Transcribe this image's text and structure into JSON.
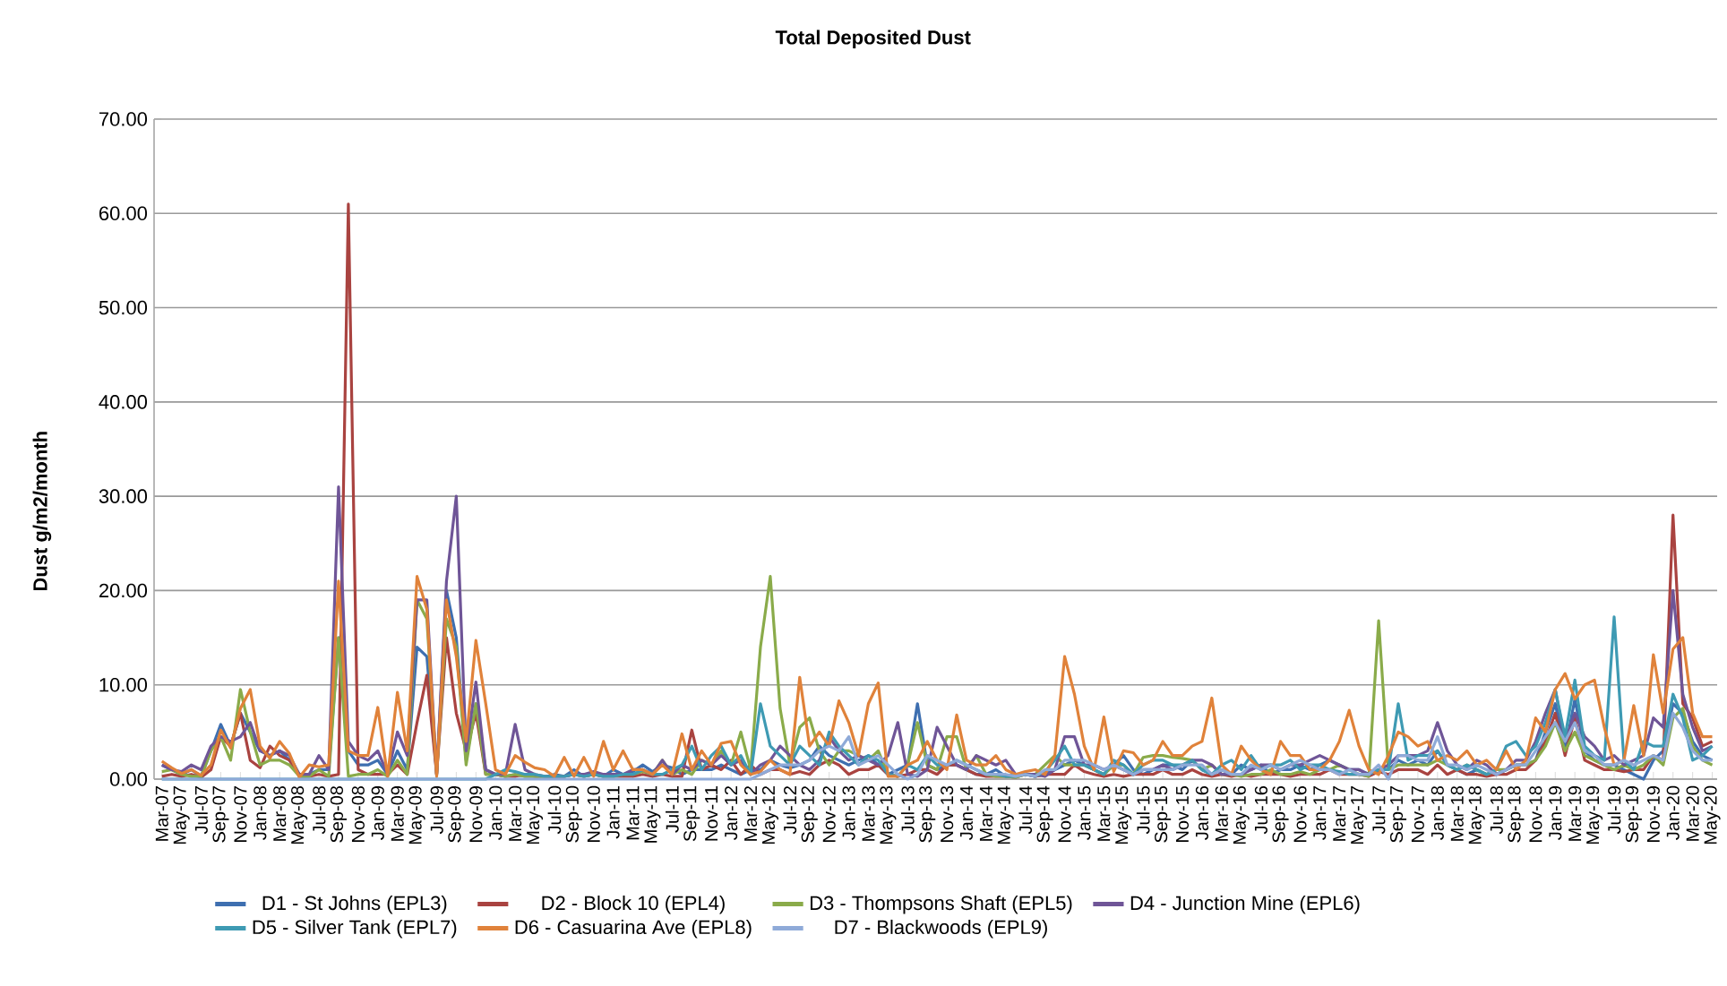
{
  "chart_data": {
    "type": "line",
    "title": "Total Deposited Dust",
    "ylabel": "Dust g/m2/month",
    "categories": [
      "Mar-07",
      null,
      "May-07",
      null,
      "Jul-07",
      null,
      "Sep-07",
      null,
      "Nov-07",
      null,
      "Jan-08",
      null,
      "Mar-08",
      null,
      "May-08",
      null,
      "Jul-08",
      null,
      "Sep-08",
      null,
      "Nov-08",
      null,
      "Jan-09",
      null,
      "Mar-09",
      null,
      "May-09",
      null,
      "Jul-09",
      null,
      "Sep-09",
      null,
      "Nov-09",
      null,
      "Jan-10",
      null,
      "Mar-10",
      null,
      "May-10",
      null,
      "Jul-10",
      null,
      "Sep-10",
      null,
      "Nov-10",
      null,
      "Jan-11",
      null,
      "Mar-11",
      null,
      "May-11",
      null,
      "Jul-11",
      null,
      "Sep-11",
      null,
      "Nov-11",
      null,
      "Jan-12",
      null,
      "Mar-12",
      null,
      "May-12",
      null,
      "Jul-12",
      null,
      "Sep-12",
      null,
      "Nov-12",
      null,
      "Jan-13",
      null,
      "Mar-13",
      null,
      "May-13",
      null,
      "Jul-13",
      null,
      "Sep-13",
      null,
      "Nov-13",
      null,
      "Jan-14",
      null,
      "Mar-14",
      null,
      "May-14",
      null,
      "Jul-14",
      null,
      "Sep-14",
      null,
      "Nov-14",
      null,
      "Jan-15",
      null,
      "Mar-15",
      null,
      "May-15",
      null,
      "Jul-15",
      null,
      "Sep-15",
      null,
      "Nov-15",
      null,
      "Jan-16",
      null,
      "Mar-16",
      null,
      "May-16",
      null,
      "Jul-16",
      null,
      "Sep-16",
      null,
      "Nov-16",
      null,
      "Jan-17",
      null,
      "Mar-17",
      null,
      "May-17",
      null,
      "Jul-17",
      null,
      "Sep-17",
      null,
      "Nov-17",
      null,
      "Jan-18",
      null,
      "Mar-18",
      null,
      "May-18",
      null,
      "Jul-18",
      null,
      "Sep-18",
      null,
      "Nov-18",
      null,
      "Jan-19",
      null,
      "Mar-19",
      null,
      "May-19",
      null,
      "Jul-19",
      null,
      "Sep-19",
      null,
      "Nov-19",
      null,
      "Jan-20",
      null,
      "Mar-20",
      null,
      "May-20"
    ],
    "ylim": [
      0,
      70
    ],
    "yticks": [
      {
        "value": 0,
        "label": "0.00"
      },
      {
        "value": 10,
        "label": "10.00"
      },
      {
        "value": 20,
        "label": "20.00"
      },
      {
        "value": 30,
        "label": "30.00"
      },
      {
        "value": 40,
        "label": "40.00"
      },
      {
        "value": 50,
        "label": "50.00"
      },
      {
        "value": 60,
        "label": "60.00"
      },
      {
        "value": 70,
        "label": "70.00"
      }
    ],
    "grid": "y",
    "legend": "bottom",
    "marker": "none",
    "line_style": "solid",
    "series": [
      {
        "name": "D1 - St Johns (EPL3)",
        "color": "#3e6fb0",
        "values": [
          1.5,
          1.0,
          0.5,
          1.0,
          0.3,
          3.0,
          5.8,
          3.5,
          7.0,
          5.0,
          3.0,
          2.5,
          3.0,
          2.0,
          0.5,
          0.5,
          1.0,
          1.0,
          15.0,
          3.0,
          1.5,
          1.5,
          2.0,
          0.5,
          3.0,
          1.0,
          14.0,
          13.0,
          0.5,
          20.0,
          15.0,
          2.0,
          8.0,
          1.0,
          0.5,
          0.3,
          0.5,
          0.3,
          0.3,
          0.2,
          0.5,
          0.3,
          1.0,
          0.3,
          0.5,
          0.3,
          1.0,
          0.5,
          0.8,
          1.5,
          0.8,
          1.5,
          1.2,
          0.5,
          1.0,
          1.0,
          1.0,
          1.5,
          1.0,
          0.5,
          1.0,
          1.0,
          2.0,
          1.5,
          1.2,
          1.5,
          2.0,
          3.5,
          2.5,
          2.0,
          1.5,
          2.0,
          2.5,
          1.5,
          0.5,
          1.0,
          1.5,
          8.0,
          1.5,
          1.0,
          1.5,
          1.5,
          1.0,
          0.5,
          0.5,
          1.0,
          0.3,
          0.5,
          0.5,
          0.3,
          0.5,
          1.0,
          1.5,
          2.0,
          1.5,
          1.0,
          0.5,
          1.5,
          2.5,
          1.0,
          0.5,
          1.0,
          1.5,
          1.5,
          1.0,
          2.0,
          1.0,
          0.5,
          1.0,
          0.5,
          1.5,
          1.0,
          1.5,
          0.5,
          1.0,
          1.0,
          1.5,
          1.0,
          1.5,
          2.0,
          1.5,
          1.0,
          1.0,
          0.5,
          1.0,
          1.0,
          2.0,
          1.5,
          2.0,
          1.5,
          3.0,
          1.5,
          1.0,
          0.5,
          1.0,
          0.5,
          0.5,
          1.0,
          1.5,
          1.5,
          2.0,
          5.0,
          8.0,
          3.0,
          8.5,
          3.0,
          2.0,
          1.5,
          1.5,
          1.0,
          0.5,
          0.0,
          2.0,
          3.0,
          8.0,
          7.0,
          4.0,
          2.5,
          2.0
        ]
      },
      {
        "name": "D2 - Block 10 (EPL4)",
        "color": "#a94340",
        "values": [
          0.3,
          0.5,
          0.3,
          0.5,
          0.2,
          1.0,
          4.5,
          3.5,
          7.0,
          2.0,
          1.2,
          3.5,
          2.5,
          2.0,
          0.3,
          0.3,
          0.5,
          0.3,
          0.5,
          61.0,
          1.0,
          0.5,
          0.5,
          0.5,
          1.5,
          0.5,
          6.0,
          11.0,
          0.5,
          15.0,
          7.0,
          3.0,
          7.0,
          0.5,
          0.5,
          0.3,
          0.3,
          0.5,
          0.3,
          0.2,
          0.3,
          0.3,
          0.5,
          0.3,
          0.5,
          0.3,
          0.3,
          0.3,
          0.3,
          0.5,
          0.3,
          0.5,
          0.3,
          0.3,
          5.2,
          1.0,
          1.5,
          1.0,
          2.0,
          0.5,
          1.5,
          0.5,
          1.0,
          1.0,
          0.5,
          0.8,
          0.5,
          1.5,
          2.0,
          1.5,
          0.5,
          1.0,
          1.0,
          1.5,
          0.5,
          0.3,
          0.5,
          1.0,
          1.0,
          0.5,
          1.5,
          1.5,
          1.0,
          0.5,
          0.3,
          0.3,
          0.3,
          0.2,
          0.5,
          0.3,
          0.5,
          0.5,
          0.5,
          1.5,
          0.8,
          0.5,
          0.3,
          0.5,
          0.3,
          0.5,
          0.5,
          0.5,
          1.0,
          0.5,
          0.5,
          1.0,
          0.5,
          0.3,
          0.5,
          0.3,
          0.5,
          0.3,
          0.5,
          0.5,
          0.5,
          0.3,
          0.5,
          0.5,
          0.5,
          1.0,
          0.5,
          0.5,
          0.5,
          0.3,
          0.8,
          0.5,
          1.0,
          1.0,
          1.0,
          0.5,
          1.5,
          0.5,
          1.0,
          0.5,
          0.5,
          0.3,
          0.5,
          0.5,
          1.0,
          1.0,
          2.0,
          4.0,
          7.0,
          2.5,
          6.5,
          2.0,
          1.5,
          1.0,
          1.0,
          0.8,
          1.0,
          1.0,
          2.5,
          2.0,
          28.0,
          8.0,
          6.5,
          3.5,
          4.0
        ]
      },
      {
        "name": "D3 - Thompsons Shaft (EPL5)",
        "color": "#8aab4a",
        "values": [
          0.8,
          1.0,
          0.5,
          0.3,
          0.3,
          3.0,
          4.5,
          2.0,
          9.5,
          5.0,
          1.5,
          2.0,
          2.0,
          1.5,
          0.3,
          0.3,
          1.0,
          0.3,
          15.0,
          0.3,
          0.5,
          0.5,
          1.0,
          0.3,
          2.0,
          0.5,
          19.0,
          17.0,
          0.5,
          17.0,
          14.0,
          1.5,
          8.0,
          0.5,
          0.5,
          0.3,
          0.5,
          0.3,
          0.3,
          0.2,
          0.3,
          0.3,
          0.5,
          0.3,
          0.5,
          0.3,
          0.3,
          0.5,
          0.5,
          0.8,
          0.5,
          2.0,
          0.5,
          1.0,
          0.5,
          2.0,
          1.5,
          3.0,
          1.5,
          5.0,
          1.0,
          14.0,
          21.5,
          7.5,
          1.5,
          5.5,
          6.5,
          3.0,
          1.5,
          3.0,
          3.0,
          2.5,
          2.0,
          3.0,
          0.5,
          0.3,
          1.5,
          6.0,
          1.5,
          1.0,
          4.5,
          4.5,
          1.0,
          2.5,
          0.5,
          0.3,
          0.3,
          0.2,
          0.5,
          0.5,
          1.5,
          2.5,
          1.5,
          1.5,
          1.5,
          1.0,
          0.5,
          1.5,
          1.5,
          0.5,
          2.3,
          2.5,
          2.5,
          2.3,
          2.2,
          2.0,
          1.0,
          1.5,
          0.5,
          0.5,
          0.3,
          0.5,
          0.5,
          1.0,
          0.5,
          0.5,
          0.8,
          0.5,
          1.0,
          1.0,
          1.5,
          1.0,
          0.5,
          0.3,
          16.8,
          1.0,
          1.5,
          1.5,
          1.5,
          1.5,
          2.0,
          1.5,
          1.0,
          1.5,
          1.0,
          0.5,
          1.0,
          1.0,
          1.5,
          1.5,
          2.0,
          3.5,
          6.0,
          3.0,
          5.0,
          2.5,
          2.0,
          1.5,
          1.0,
          1.5,
          1.0,
          1.5,
          2.5,
          1.5,
          6.5,
          7.5,
          3.5,
          2.0,
          1.5
        ]
      },
      {
        "name": "D4 - Junction Mine (EPL6)",
        "color": "#6f5597",
        "values": [
          1.5,
          1.0,
          0.8,
          1.5,
          1.0,
          3.5,
          4.5,
          4.0,
          4.5,
          6.0,
          3.0,
          2.5,
          3.0,
          2.5,
          0.5,
          0.5,
          2.5,
          1.0,
          31.0,
          4.0,
          2.5,
          2.0,
          3.0,
          0.5,
          5.0,
          2.5,
          19.0,
          19.0,
          0.5,
          21.0,
          30.0,
          3.0,
          10.3,
          1.0,
          0.5,
          0.5,
          5.8,
          1.0,
          0.5,
          0.3,
          0.3,
          0.3,
          0.5,
          0.5,
          0.8,
          0.5,
          0.5,
          0.5,
          1.0,
          1.0,
          0.5,
          2.0,
          0.5,
          1.5,
          1.0,
          2.0,
          1.5,
          2.5,
          1.5,
          2.0,
          0.5,
          1.5,
          2.0,
          3.5,
          2.5,
          1.5,
          1.0,
          2.0,
          4.5,
          3.0,
          2.0,
          2.5,
          2.0,
          1.5,
          2.5,
          6.0,
          0.5,
          0.3,
          1.0,
          5.5,
          3.5,
          1.5,
          1.0,
          2.5,
          2.0,
          1.5,
          2.0,
          0.5,
          0.5,
          0.5,
          0.3,
          1.0,
          4.5,
          4.5,
          1.5,
          1.5,
          1.0,
          1.5,
          1.0,
          0.5,
          1.0,
          1.0,
          1.5,
          1.0,
          1.5,
          2.0,
          2.0,
          1.5,
          0.5,
          0.5,
          0.5,
          1.0,
          1.5,
          1.5,
          1.0,
          1.5,
          1.5,
          2.0,
          2.5,
          2.0,
          1.5,
          1.0,
          1.0,
          0.5,
          1.0,
          1.5,
          2.5,
          2.5,
          2.5,
          3.0,
          6.0,
          3.0,
          1.5,
          1.0,
          2.0,
          1.5,
          0.5,
          1.0,
          2.0,
          2.0,
          4.0,
          7.0,
          9.5,
          4.0,
          7.0,
          4.5,
          3.5,
          2.0,
          2.5,
          1.5,
          2.0,
          2.5,
          6.5,
          5.5,
          20.0,
          9.0,
          5.5,
          3.0,
          3.5
        ]
      },
      {
        "name": "D5 - Silver Tank (EPL7)",
        "color": "#3e9ab3",
        "values": [
          0,
          0,
          0,
          0,
          0,
          0,
          0,
          0,
          0,
          0,
          0,
          0,
          0,
          0,
          0,
          0,
          0,
          0,
          0,
          0,
          0,
          0,
          0,
          0,
          0,
          0,
          0,
          0,
          0,
          0,
          0,
          0,
          0,
          0,
          0.5,
          1.0,
          0.8,
          0.5,
          0.5,
          0.3,
          0.3,
          0.3,
          0.5,
          0.3,
          0.5,
          0.3,
          0.3,
          0.5,
          0.5,
          1.0,
          0.5,
          0.5,
          1.0,
          1.5,
          3.5,
          1.0,
          2.5,
          3.5,
          1.5,
          2.5,
          0.5,
          8.0,
          3.5,
          2.5,
          1.5,
          3.5,
          2.5,
          1.5,
          5.0,
          3.5,
          2.5,
          1.5,
          2.5,
          2.0,
          0.5,
          0.3,
          1.5,
          1.0,
          2.5,
          1.5,
          1.5,
          2.0,
          1.5,
          1.0,
          0.5,
          0.5,
          0.3,
          0.3,
          0.5,
          0.3,
          0.8,
          2.0,
          3.5,
          1.5,
          1.5,
          1.0,
          0.5,
          2.0,
          1.5,
          0.5,
          1.5,
          2.0,
          2.0,
          1.5,
          1.5,
          2.0,
          1.0,
          0.5,
          1.5,
          2.0,
          1.0,
          2.5,
          1.0,
          1.5,
          1.5,
          2.0,
          1.0,
          1.5,
          1.5,
          1.0,
          0.8,
          0.5,
          0.5,
          0.5,
          1.0,
          1.0,
          8.0,
          2.0,
          2.5,
          2.5,
          3.0,
          1.5,
          1.0,
          1.5,
          1.0,
          0.5,
          1.0,
          3.5,
          4.0,
          2.5,
          3.5,
          6.0,
          9.5,
          4.5,
          10.5,
          3.5,
          2.5,
          2.0,
          17.2,
          2.0,
          1.0,
          4.0,
          3.5,
          3.5,
          9.0,
          6.5,
          2.0,
          2.5,
          3.5
        ]
      },
      {
        "name": "D6 - Casuarina Ave (EPL8)",
        "color": "#e0823a",
        "values": [
          1.9,
          1.2,
          0.6,
          1.0,
          0.4,
          1.5,
          5.2,
          3.3,
          7.5,
          9.5,
          3.5,
          2.2,
          4.0,
          2.7,
          0.2,
          1.5,
          1.3,
          1.5,
          21.0,
          3.0,
          2.5,
          2.5,
          7.6,
          0.3,
          9.2,
          3.0,
          21.5,
          18.0,
          0.3,
          19.0,
          13.0,
          4.0,
          14.7,
          8.0,
          1.0,
          0.5,
          2.5,
          1.8,
          1.2,
          1.0,
          0.3,
          2.3,
          0.3,
          2.3,
          0.3,
          4.0,
          1.0,
          3.0,
          1.0,
          1.0,
          0.5,
          1.5,
          0.5,
          4.8,
          1.0,
          3.0,
          1.5,
          3.8,
          4.0,
          1.5,
          0.5,
          0.8,
          2.0,
          1.0,
          0.5,
          10.8,
          3.5,
          5.0,
          3.5,
          8.3,
          6.0,
          2.5,
          8.0,
          10.2,
          0.3,
          0.3,
          1.5,
          2.0,
          4.0,
          2.0,
          1.0,
          6.8,
          2.0,
          1.5,
          1.5,
          2.5,
          1.0,
          0.5,
          0.8,
          1.0,
          0.5,
          2.5,
          13.0,
          9.0,
          3.5,
          1.0,
          6.6,
          0.8,
          3.0,
          2.8,
          1.5,
          2.0,
          4.0,
          2.5,
          2.5,
          3.5,
          4.0,
          8.6,
          1.5,
          0.5,
          3.5,
          2.0,
          1.0,
          0.5,
          4.0,
          2.5,
          2.5,
          1.0,
          1.0,
          2.0,
          4.0,
          7.3,
          3.5,
          1.0,
          0.5,
          2.5,
          5.0,
          4.5,
          3.5,
          4.0,
          2.0,
          2.5,
          2.0,
          3.0,
          1.5,
          2.0,
          1.0,
          3.0,
          1.0,
          2.0,
          6.5,
          5.0,
          9.5,
          11.2,
          8.5,
          10.0,
          10.5,
          5.5,
          1.5,
          2.0,
          7.8,
          2.5,
          13.2,
          7.0,
          13.8,
          15.0,
          7.0,
          4.5,
          4.5
        ]
      },
      {
        "name": "D7 - Blackwoods (EPL9)",
        "color": "#8faad8",
        "values": [
          0,
          0,
          0,
          0,
          0,
          0,
          0,
          0,
          0,
          0,
          0,
          0,
          0,
          0,
          0,
          0,
          0,
          0,
          0,
          0,
          0,
          0,
          0,
          0,
          0,
          0,
          0,
          0,
          0,
          0,
          0,
          0,
          0,
          0,
          0,
          0,
          0,
          0,
          0,
          0,
          0,
          0,
          0,
          0,
          0,
          0,
          0,
          0,
          0,
          0,
          0,
          0,
          0,
          0,
          0,
          0,
          0,
          0,
          0.0,
          0.0,
          0.0,
          0.5,
          1.0,
          1.5,
          1.5,
          1.5,
          2.0,
          3.0,
          3.5,
          3.0,
          4.5,
          1.5,
          2.0,
          2.5,
          1.5,
          0.5,
          0.0,
          0.5,
          2.5,
          2.0,
          1.5,
          2.0,
          1.5,
          1.0,
          0.5,
          0.5,
          0.5,
          0.3,
          0.5,
          0.3,
          1.0,
          1.0,
          2.0,
          2.0,
          2.0,
          1.5,
          1.0,
          1.5,
          1.0,
          0.5,
          1.0,
          1.0,
          1.0,
          1.0,
          1.5,
          1.5,
          1.5,
          0.5,
          1.0,
          0.5,
          0.5,
          1.5,
          1.0,
          1.5,
          1.0,
          1.5,
          2.0,
          1.5,
          1.0,
          1.0,
          0.5,
          1.0,
          0.5,
          0.5,
          1.5,
          0.0,
          2.5,
          2.5,
          2.0,
          2.0,
          4.5,
          1.5,
          1.5,
          1.0,
          1.5,
          1.0,
          0.5,
          1.0,
          1.5,
          1.5,
          3.0,
          4.5,
          6.0,
          4.0,
          6.0,
          3.0,
          2.5,
          1.5,
          1.5,
          2.0,
          1.5,
          2.0,
          2.5,
          2.0,
          7.0,
          5.5,
          3.0,
          2.0,
          2.0
        ]
      }
    ]
  }
}
